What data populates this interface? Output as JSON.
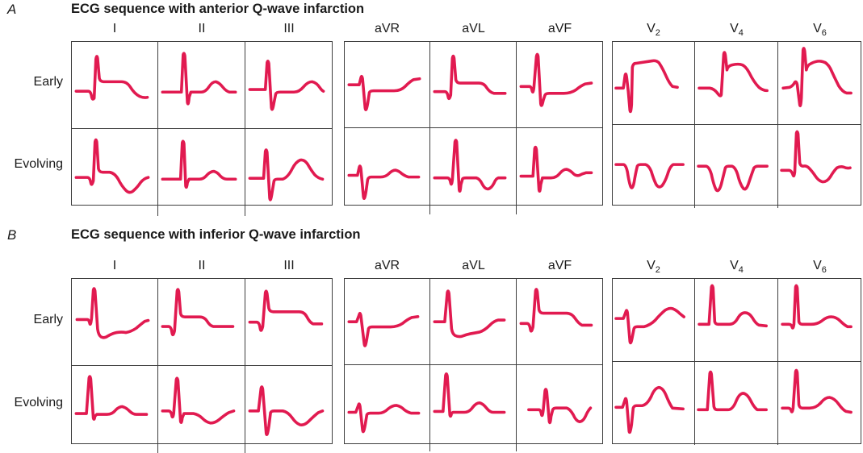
{
  "figure": {
    "colors": {
      "trace": "#e11a50",
      "grid_border": "#3e3e3e",
      "text": "#1a1a1a"
    },
    "row_labels": [
      "Early",
      "Evolving"
    ],
    "lead_groups": [
      [
        "I",
        "II",
        "III"
      ],
      [
        "aVR",
        "aVL",
        "aVF"
      ],
      [
        "V2",
        "V4",
        "V6"
      ]
    ],
    "panels": [
      {
        "marker": "A",
        "title": "ECG sequence with anterior Q-wave infarction",
        "traces": [
          [
            [
              "M5,57 L19,57 Q22,57 23,63 Q24,68 26,65 L28,20 Q29,14 30,19 L32,42 Q33,46 37,46 L58,46 Q64,46 68,52 Q73,60 79,63 Q84,65 88,64",
              "M5,58 L24,58 L27,58 L29,15 Q30,11 31,16 L34,70 Q35,75 36,64 L38,58 L50,58 Q55,58 59,52 Q63,46 67,46 Q71,47 75,52 Q79,57 83,58 L90,58",
              "M5,55 L20,55 L23,55 L25,24 Q26,20 27,25 L30,76 Q31,82 33,70 L35,60 Q36,58 40,58 L56,58 Q62,58 67,52 Q72,46 77,46 Q82,47 86,53 Q88,56 90,57"
            ],
            [
              "M5,50 L17,50 L19,42 Q20,38 21,43 L24,77 Q25,83 27,72 L29,59 Q30,57 34,57 L58,57 Q66,57 71,52 Q77,46 81,44 L88,43",
              "M5,58 L17,58 Q20,58 21,64 Q22,69 24,62 L26,19 Q27,14 28,19 L30,44 Q31,48 35,48 L57,48 Q63,48 66,53 Q70,59 75,60 L88,60",
              "M5,52 L15,52 Q17,52 18,57 Q19,61 20,54 L23,17 Q24,12 25,17 L28,72 Q29,78 31,68 L33,62 Q34,60 38,60 L55,60 Q63,60 69,56 Q75,51 80,49 L87,48"
            ],
            [
              "M4,56 L13,56 L15,41 Q16,36 17,43 L19,60 L21,83 Q22,88 23,76 L24,31 Q25,26 28,26 L48,23 Q54,22 57,26 Q61,32 65,41 Q69,50 73,54 L79,55",
              "M5,56 L18,56 Q24,57 28,63 Q31,67 32,64 L35,15 Q36,10 37,16 L39,34 Q40,29 45,28 Q53,26 58,28 Q62,30 66,37 Q72,49 78,55 Q83,59 88,59",
              "M6,56 L14,55 Q18,53 20,49 Q22,47 23,52 L26,76 Q27,81 28,68 L30,10 Q31,5 32,11 L34,34 Q35,28 40,26 Q48,22 54,24 Q59,25 63,32 Q68,43 73,53 Q78,61 83,62 L88,62"
            ]
          ],
          [
            [
              "M5,56 L18,56 Q21,56 22,62 Q23,67 25,60 L27,15 Q28,10 29,15 L31,46 Q32,50 36,50 L44,50 Q50,51 54,58 Q58,66 63,71 Q67,75 71,72 Q76,68 80,62 Q84,57 89,56",
              "M5,58 L24,58 L26,58 L28,16 Q29,12 30,17 L32,66 Q33,70 34,62 L36,58 L48,58 Q53,58 57,53 Q61,49 65,49 Q69,50 72,54 Q76,58 80,58 L90,58",
              "M5,57 L18,57 L21,57 L23,26 Q24,22 25,27 L28,80 Q29,86 31,72 L33,60 Q34,58 37,58 L43,58 Q49,56 54,46 Q58,38 63,36 Q68,35 72,41 Q76,48 80,53 Q84,57 89,58"
            ],
            [
              "M5,55 L15,55 L17,46 Q18,42 19,47 L22,80 Q23,86 25,74 L27,60 Q28,57 31,57 L42,57 Q48,57 52,53 Q56,49 60,49 Q64,50 67,53 Q71,56 75,57 L87,57",
              "M5,58 L20,58 Q23,58 24,64 Q25,68 26,60 L29,16 Q30,12 31,16 L34,72 Q35,77 36,66 L38,59 Q39,58 42,58 L54,58 Q58,59 61,65 Q64,71 68,71 Q72,70 75,64 Q77,59 80,58 L88,58",
              "M5,56 L16,56 L19,56 L21,24 Q22,20 23,25 L26,72 Q27,77 28,66 L30,58 L40,58 Q46,58 50,53 Q54,48 58,48 Q62,49 66,53 Q69,56 73,55 Q77,53 81,52 L87,52"
            ],
            [
              "M4,48 L13,48 Q16,48 18,57 Q20,70 22,75 Q24,79 26,70 Q28,58 30,50 Q31,48 34,48 L40,48 Q44,49 47,56 Q50,66 53,72 Q56,77 60,74 Q64,69 67,60 Q70,50 74,48 L86,48",
              "M4,50 L13,50 Q17,50 20,60 Q23,74 26,79 Q29,82 32,72 Q35,60 37,52 Q38,50 41,50 L45,50 Q49,51 52,60 Q55,72 59,77 Q62,80 65,72 Q69,60 72,52 Q74,50 77,50 L88,50",
              "M4,55 L13,55 Q16,55 18,61 Q19,64 20,57 L22,10 Q23,6 24,11 L26,46 Q27,50 30,50 Q34,49 37,52 Q41,56 45,62 Q49,68 54,69 Q59,69 63,63 Q67,56 71,52 Q75,50 79,51 Q83,53 87,52"
            ]
          ]
        ]
      },
      {
        "marker": "B",
        "title": "ECG sequence with inferior Q-wave infarction",
        "traces": [
          [
            [
              "M6,47 L18,47 Q20,47 21,52 Q22,54 23,45 L25,13 Q26,9 27,14 L30,58 Q31,65 34,67 Q38,69 42,66 Q47,63 52,62 Q58,61 63,62 Q69,61 75,57 Q81,52 85,49 L89,48",
              "M5,55 L12,55 Q15,55 16,62 Q17,68 19,60 L22,14 Q23,10 24,15 L26,40 Q27,44 31,44 L48,44 Q54,44 57,49 Q60,54 64,55 L87,55",
              "M5,50 L13,50 Q16,50 17,57 Q18,63 20,55 L23,16 Q24,12 25,17 L27,34 Q28,38 32,38 L62,38 Q68,38 71,44 Q74,50 78,52 L88,52"
            ],
            [
              "M5,50 L14,50 L17,42 Q18,38 19,43 L23,76 Q24,82 26,70 L28,58 Q29,56 32,56 L54,56 Q62,56 68,52 Q74,47 79,45 L86,44",
              "M5,50 L14,50 L17,50 L20,16 Q21,12 22,17 L25,58 Q26,64 29,66 Q33,68 37,67 Q42,65 47,64 Q53,63 58,62 Q64,60 70,54 Q75,49 80,48 L87,48",
              "M5,52 L12,52 Q15,52 16,59 Q17,64 19,56 L22,14 Q23,10 24,15 L26,36 Q27,40 31,40 L58,40 Q64,40 68,46 Q72,52 76,54 L87,54"
            ],
            [
              "M4,48 L13,48 L16,40 Q17,36 18,41 L21,76 Q22,81 24,70 L26,60 Q27,58 30,58 L38,58 Q46,56 52,50 Q58,43 64,38 Q69,35 73,36 Q78,38 82,42 L87,46",
              "M5,55 L14,55 L17,55 L20,10 Q21,6 22,11 L24,52 Q25,55 28,55 L42,55 Q48,55 52,48 Q56,41 61,41 Q66,41 70,47 Q74,54 78,56 L87,57",
              "M5,55 L13,55 Q16,55 17,59 Q18,61 19,55 L21,10 Q22,6 23,11 L25,52 Q26,55 29,55 L40,55 Q48,55 54,50 Q59,46 64,46 Q70,46 75,51 Q80,56 84,58 L88,58"
            ]
          ],
          [
            [
              "M5,55 L14,55 L17,55 L20,14 Q21,10 22,15 L25,60 Q26,64 27,58 L29,56 L41,56 Q47,56 51,51 Q55,47 59,47 Q63,48 67,52 Q71,56 75,56 L87,56",
              "M5,52 L12,52 Q15,52 16,58 Q17,61 18,55 L21,16 Q22,12 23,17 L26,64 Q27,68 28,60 L30,55 L41,55 Q47,56 52,61 Q56,65 61,66 Q66,66 71,62 Q77,57 82,54 L88,52",
              "M5,52 L12,52 L15,52 L18,26 Q19,22 20,27 L24,78 Q25,83 27,70 L29,54 Q30,52 33,52 L43,52 Q49,53 54,60 Q58,66 63,68 Q68,69 73,64 Q79,58 84,54 L89,52"
            ],
            [
              "M5,55 L13,55 L16,47 Q17,43 18,48 L21,76 Q22,81 24,70 L26,58 Q27,56 30,56 L40,56 Q46,56 51,51 Q56,47 61,47 Q66,48 70,52 Q74,55 78,56 L87,56",
              "M5,54 L12,54 L15,54 L18,12 Q19,8 20,13 L23,58 Q24,62 25,56 L27,55 L40,55 Q46,55 50,49 Q54,44 58,44 Q62,45 66,50 Q70,55 74,55 L87,55",
              "M14,52 L26,52 Q28,52 29,58 Q30,61 31,52 L33,30 Q34,26 35,31 L38,66 Q39,70 40,60 L42,52 Q43,50 46,50 L58,50 Q62,51 66,58 Q69,65 73,66 Q77,66 80,60 Q83,53 86,50"
            ],
            [
              "M4,55 L12,55 L15,46 Q16,42 17,48 L20,84 Q21,89 23,76 L25,56 Q26,53 29,53 L36,53 Q42,52 47,42 Q51,32 56,31 Q61,31 65,40 Q69,50 73,56 L86,57",
              "M4,58 L12,58 L15,58 L18,14 Q19,10 20,15 L23,54 Q24,58 27,58 L40,58 Q46,58 50,48 Q54,38 59,38 Q64,39 68,47 Q72,55 76,58 L87,58",
              "M5,56 L12,56 Q15,56 16,60 Q17,62 18,56 L21,12 Q22,8 23,13 L25,52 Q26,56 29,56 L38,56 Q46,56 52,49 Q57,43 62,43 Q68,44 73,51 Q78,58 82,60 L88,61"
            ]
          ]
        ]
      }
    ]
  }
}
